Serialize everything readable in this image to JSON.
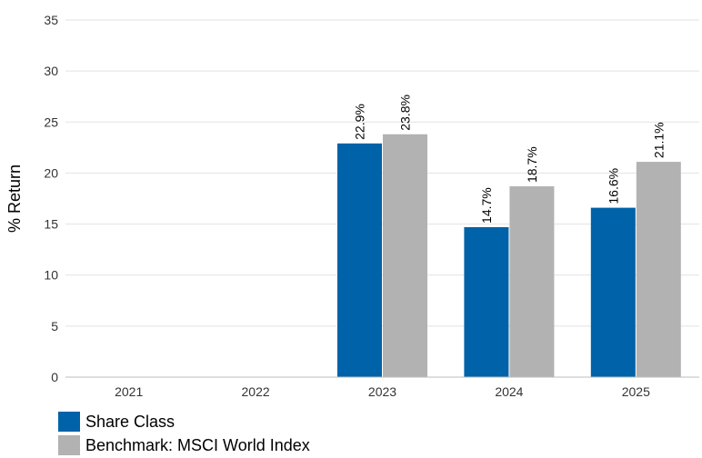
{
  "chart_data": {
    "type": "bar",
    "ylabel": "% Return",
    "ylim": [
      0,
      35
    ],
    "yticks": [
      0,
      5,
      10,
      15,
      20,
      25,
      30,
      35
    ],
    "categories": [
      "2021",
      "2022",
      "2023",
      "2024",
      "2025"
    ],
    "series": [
      {
        "name": "Share Class",
        "color": "#0062a8",
        "values": [
          null,
          null,
          22.9,
          14.7,
          16.6
        ],
        "labels": [
          "",
          "",
          "22.9%",
          "14.7%",
          "16.6%"
        ]
      },
      {
        "name": "Benchmark: MSCI World Index",
        "color": "#b2b2b2",
        "values": [
          null,
          null,
          23.8,
          18.7,
          21.1
        ],
        "labels": [
          "",
          "",
          "23.8%",
          "18.7%",
          "21.1%"
        ]
      }
    ],
    "grid": true,
    "legend": "bottom-left"
  }
}
